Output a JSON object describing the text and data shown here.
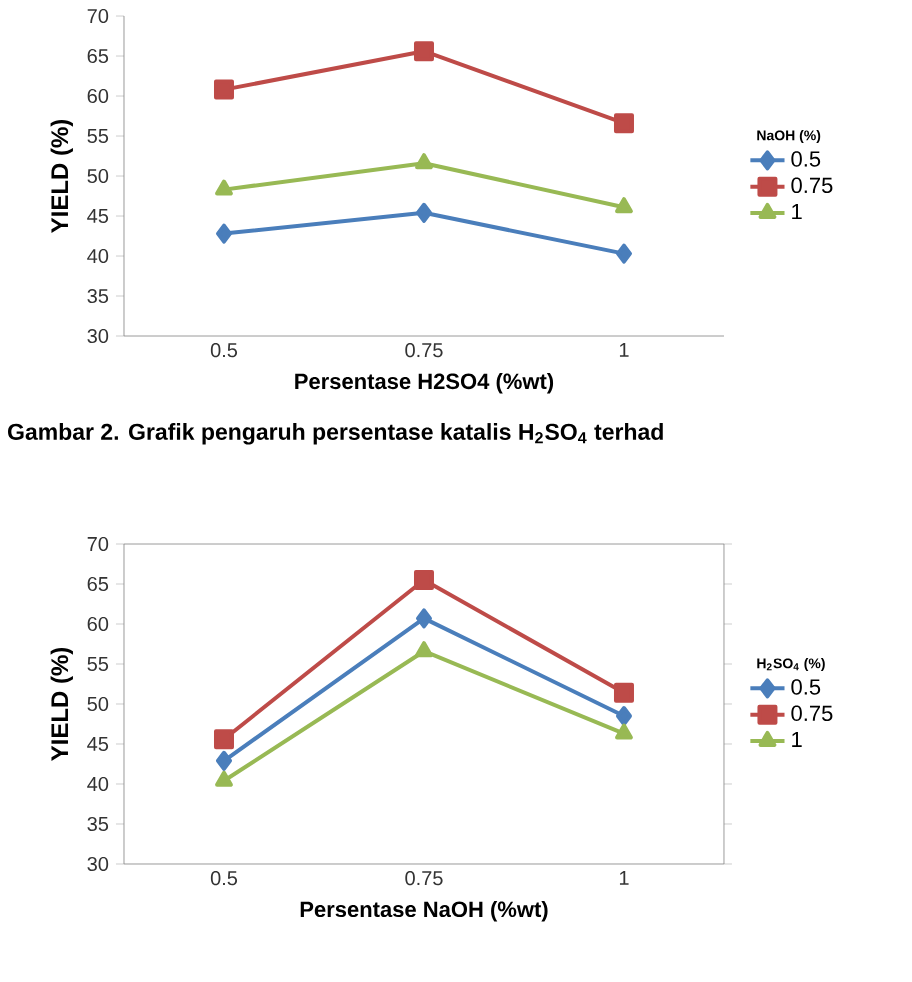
{
  "chart_data": [
    {
      "type": "line",
      "xlabel": "Persentase H2SO4  (%wt)",
      "ylabel": "YIELD  (%)",
      "legend_title": "NaOH  (%)",
      "categories": [
        "0.5",
        "0.75",
        "1"
      ],
      "ylim": [
        30,
        70
      ],
      "yticks": [
        30,
        35,
        40,
        45,
        50,
        55,
        60,
        65,
        70
      ],
      "grid": false,
      "legend": "right",
      "line_style": "solid",
      "series": [
        {
          "name": "0.5",
          "color": "#4a7ebb",
          "marker": "diamond",
          "values": [
            42.8,
            45.4,
            40.3
          ]
        },
        {
          "name": "0.75",
          "color": "#be4b48",
          "marker": "square",
          "values": [
            60.8,
            65.6,
            56.6
          ]
        },
        {
          "name": "1",
          "color": "#98b954",
          "marker": "triangle",
          "values": [
            48.3,
            51.6,
            46.1
          ]
        }
      ],
      "annotations": [
        "Gambar 2. Grafik pengaruh persentase katalis H$_{2}$SO$_{4}$ terhad"
      ]
    },
    {
      "type": "line",
      "xlabel": "Persentase NaOH (%wt)",
      "ylabel": "YIELD  (%)",
      "legend_title": "H$_{2}$SO$_{4}$ (%)",
      "categories": [
        "0.5",
        "0.75",
        "1"
      ],
      "ylim": [
        30,
        70
      ],
      "yticks": [
        30,
        35,
        40,
        45,
        50,
        55,
        60,
        65,
        70
      ],
      "grid": false,
      "legend": "right",
      "line_style": "solid",
      "series": [
        {
          "name": "0.5",
          "color": "#4a7ebb",
          "marker": "diamond",
          "values": [
            42.9,
            60.7,
            48.5
          ]
        },
        {
          "name": "0.75",
          "color": "#be4b48",
          "marker": "square",
          "values": [
            45.6,
            65.5,
            51.4
          ]
        },
        {
          "name": "1",
          "color": "#98b954",
          "marker": "triangle",
          "values": [
            40.4,
            56.6,
            46.3
          ]
        }
      ]
    }
  ]
}
